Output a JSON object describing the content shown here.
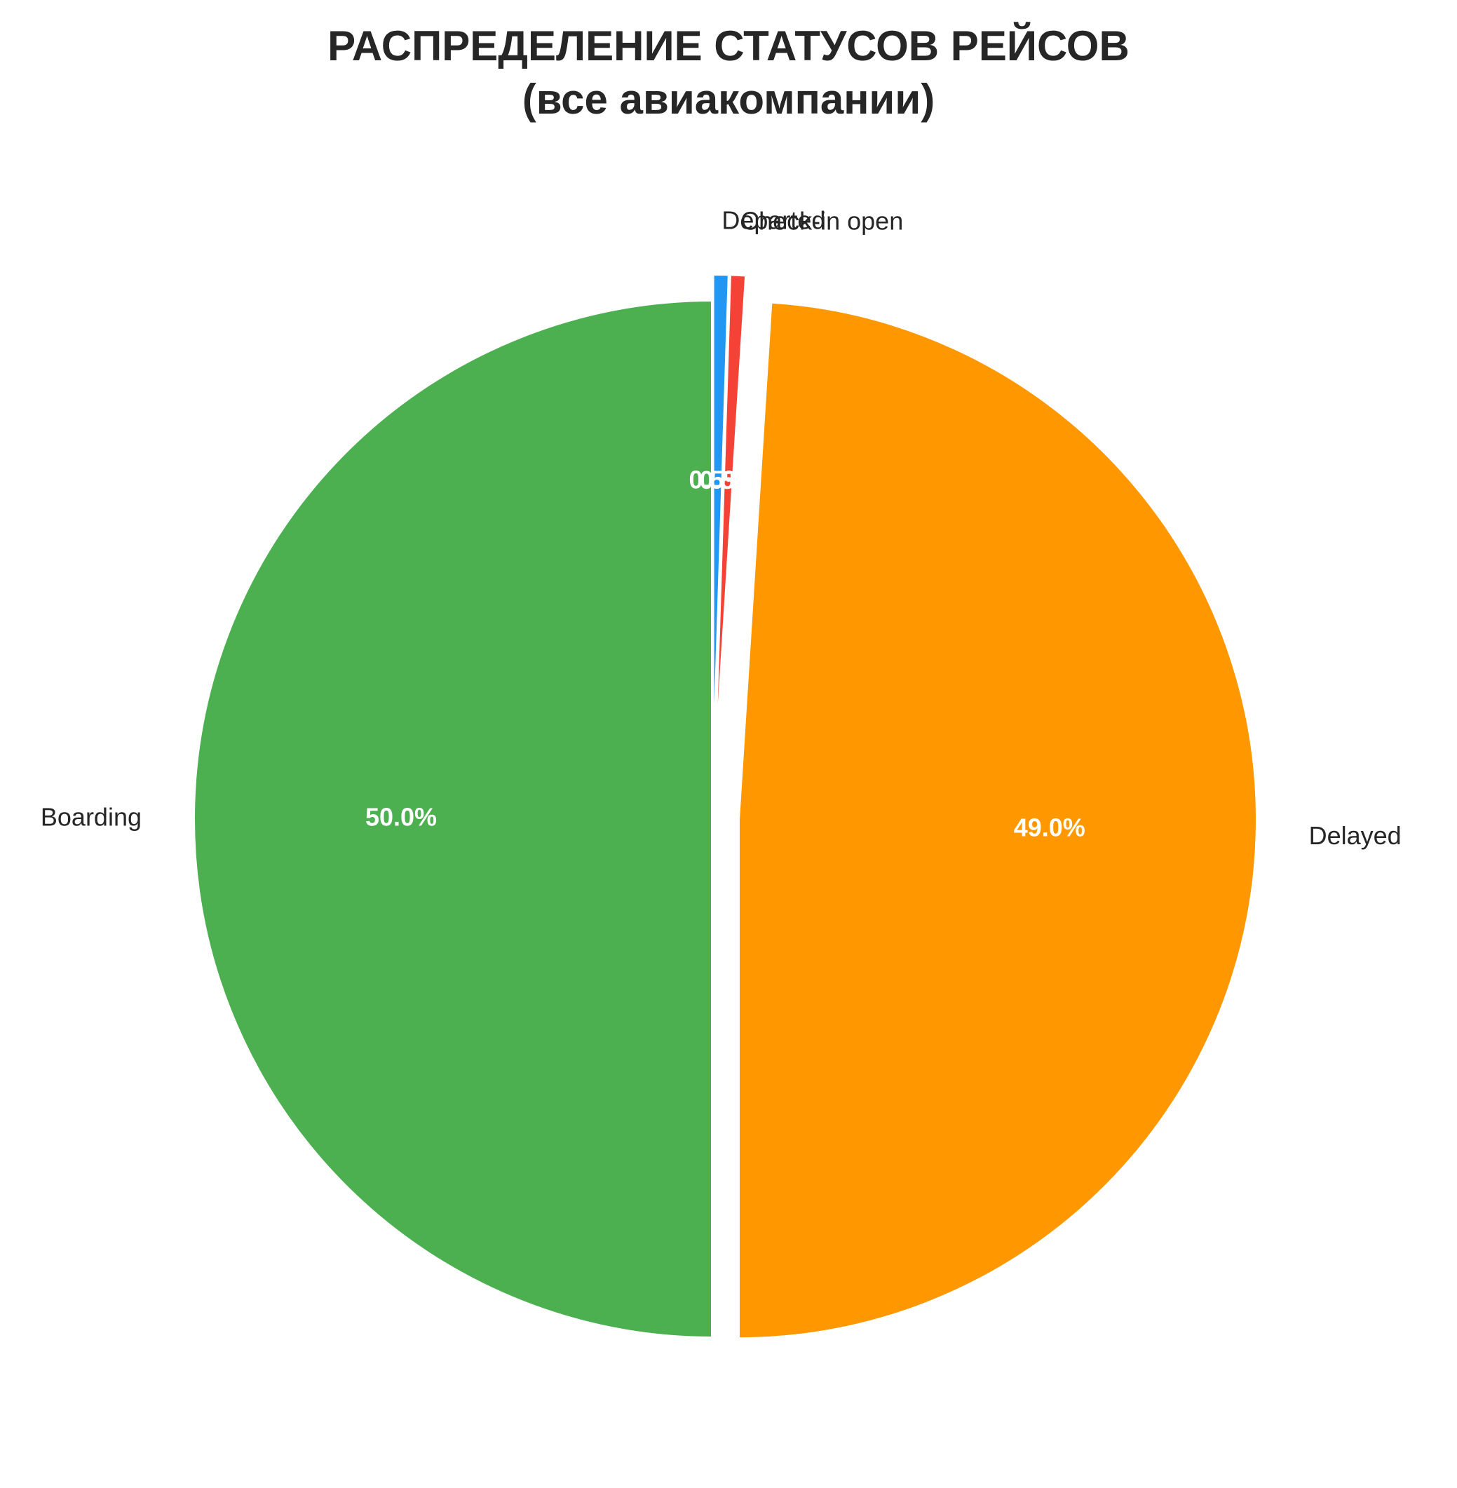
{
  "chart_data": {
    "type": "pie",
    "title_lines": [
      "РАСПРЕДЕЛЕНИЕ СТАТУСОВ РЕЙСОВ",
      "(все авиакомпании)"
    ],
    "start_angle_deg": 90,
    "direction": "clockwise",
    "slices": [
      {
        "label": "Departed",
        "value": 0.5,
        "pct_label": "0.5%",
        "color": "#2196f3",
        "exploded": true
      },
      {
        "label": "Check-in open",
        "value": 0.5,
        "pct_label": "0.5%",
        "color": "#f44336",
        "exploded": true
      },
      {
        "label": "Delayed",
        "value": 49.0,
        "pct_label": "49.0%",
        "color": "#ff9800",
        "exploded": true
      },
      {
        "label": "Boarding",
        "value": 50.0,
        "pct_label": "50.0%",
        "color": "#4caf50",
        "exploded": false
      }
    ]
  }
}
